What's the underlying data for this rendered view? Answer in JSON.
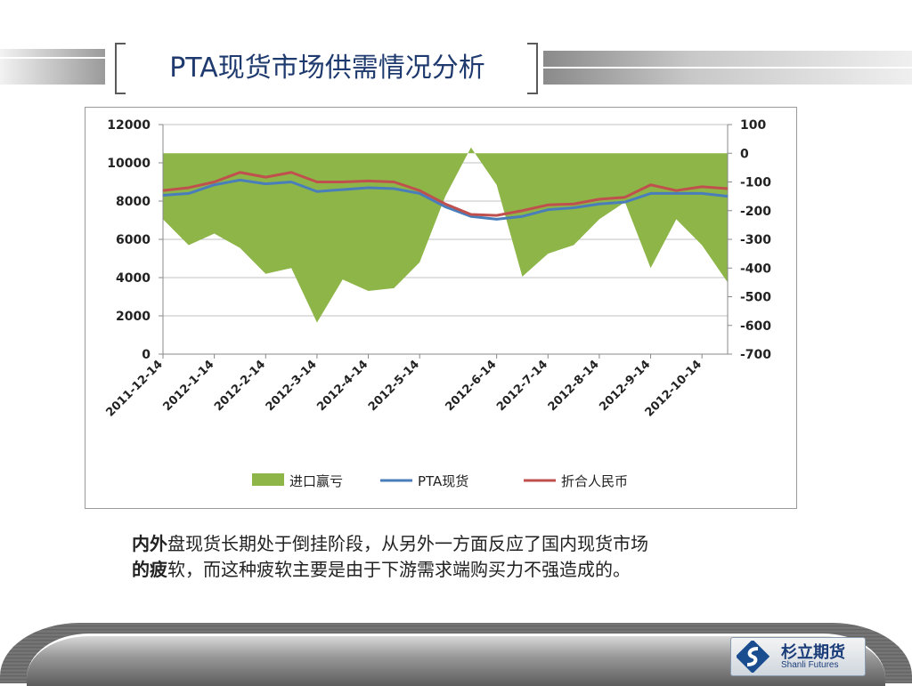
{
  "slide": {
    "title": "PTA现货市场供需情况分析",
    "note_bold_1": "内外",
    "note_rest_1": "盘现货长期处于倒挂阶段，从另外一方面反应了国内现货市场",
    "note_bold_2": "的疲",
    "note_rest_2": "软，而这种疲软主要是由于下游需求端购买力不强造成的。"
  },
  "logo": {
    "name": "杉立期货",
    "sub": "Shanli Futures"
  },
  "chart_data": {
    "type": "line",
    "x": [
      "2011-12-14",
      "2011-12-28",
      "2012-1-14",
      "2012-1-28",
      "2012-2-14",
      "2012-2-28",
      "2012-3-14",
      "2012-3-28",
      "2012-4-14",
      "2012-4-28",
      "2012-5-14",
      "2012-5-28",
      "2012-6-7",
      "2012-6-14",
      "2012-6-28",
      "2012-7-14",
      "2012-7-28",
      "2012-8-14",
      "2012-8-28",
      "2012-9-14",
      "2012-9-28",
      "2012-10-14",
      "2012-10-28"
    ],
    "x_tick_labels": [
      "2011-12-14",
      "2012-1-14",
      "2012-2-14",
      "2012-3-14",
      "2012-4-14",
      "2012-5-14",
      "2012-6-14",
      "2012-7-14",
      "2012-8-14",
      "2012-9-14",
      "2012-10-14"
    ],
    "ylim_left": [
      0,
      12000
    ],
    "yticks_left": [
      0,
      2000,
      4000,
      6000,
      8000,
      10000,
      12000
    ],
    "ylim_right": [
      -700,
      100
    ],
    "yticks_right": [
      -700,
      -600,
      -500,
      -400,
      -300,
      -200,
      -100,
      0,
      100
    ],
    "legend_position": "bottom",
    "series": [
      {
        "name": "进口赢亏",
        "axis": "right",
        "kind": "area",
        "color": "#8db548",
        "values": [
          -230,
          -320,
          -280,
          -330,
          -420,
          -400,
          -590,
          -440,
          -480,
          -470,
          -380,
          -150,
          20,
          -110,
          -430,
          -350,
          -320,
          -230,
          -170,
          -400,
          -230,
          -320,
          -450
        ]
      },
      {
        "name": "PTA现货",
        "axis": "left",
        "kind": "line",
        "color": "#4a7ebb",
        "values": [
          8300,
          8400,
          8850,
          9100,
          8900,
          9000,
          8500,
          8600,
          8700,
          8650,
          8400,
          7700,
          7200,
          7050,
          7200,
          7550,
          7650,
          7850,
          7950,
          8400,
          8400,
          8400,
          8250
        ]
      },
      {
        "name": "折合人民币",
        "axis": "left",
        "kind": "line",
        "color": "#c0504d",
        "values": [
          8550,
          8700,
          9000,
          9500,
          9250,
          9500,
          9000,
          9000,
          9050,
          9000,
          8550,
          7850,
          7300,
          7250,
          7500,
          7800,
          7850,
          8100,
          8200,
          8850,
          8550,
          8750,
          8650
        ]
      }
    ]
  }
}
